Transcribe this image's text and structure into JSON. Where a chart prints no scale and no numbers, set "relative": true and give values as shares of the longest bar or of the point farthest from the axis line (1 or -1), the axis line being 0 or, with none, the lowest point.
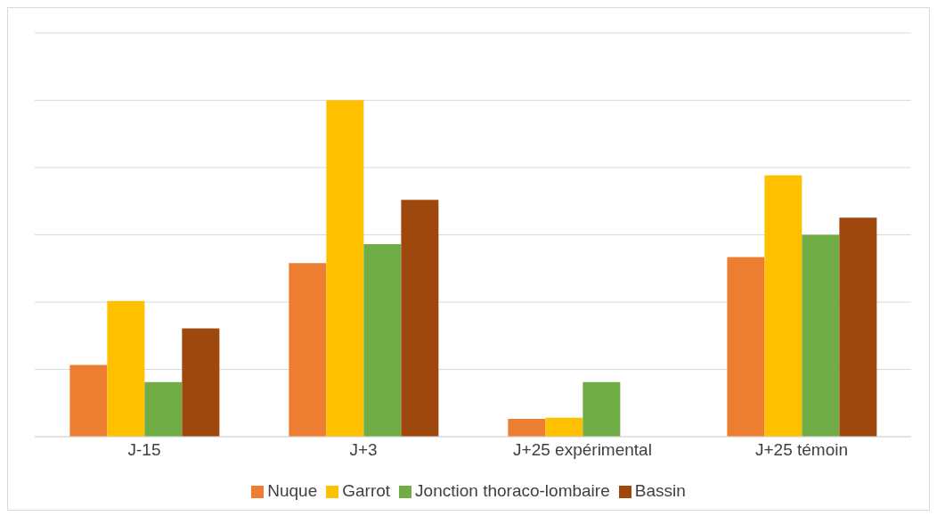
{
  "chart_data": {
    "type": "bar",
    "relative": true,
    "grid": "y",
    "legend": "bottom",
    "categories": [
      "J-15",
      "J+3",
      "J+25 expérimental",
      "J+25 témoin"
    ],
    "series": [
      {
        "name": "Nuque",
        "color": "#ed7d31",
        "values": [
          0.213,
          0.516,
          0.053,
          0.534
        ]
      },
      {
        "name": "Garrot",
        "color": "#ffc000",
        "values": [
          0.403,
          1,
          0.056,
          0.777
        ]
      },
      {
        "name": "Jonction thoraco-lombaire",
        "color": "#70ad47",
        "values": [
          0.162,
          0.572,
          0.162,
          0.6
        ]
      },
      {
        "name": "Bassin",
        "color": "#9e480e",
        "values": [
          0.322,
          0.704,
          0,
          0.651
        ]
      }
    ]
  }
}
